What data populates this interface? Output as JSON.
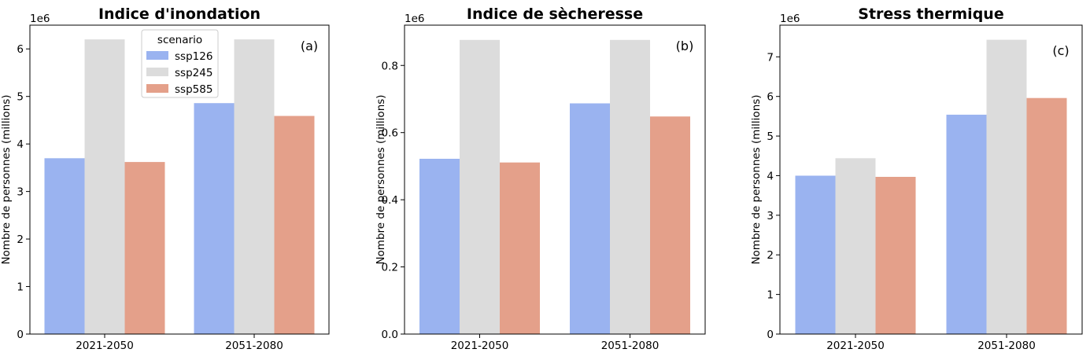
{
  "chart_data": [
    {
      "type": "bar",
      "title": "Indice d'inondation",
      "panel_label": "(a)",
      "ylabel": "Nombre de personnes (millions)",
      "offset_label": "1e6",
      "xlabel": "",
      "categories": [
        "2021-2050",
        "2051-2080"
      ],
      "series": [
        {
          "name": "ssp126",
          "values": [
            3700000,
            4860000
          ],
          "color": "#9ab3f0"
        },
        {
          "name": "ssp245",
          "values": [
            6200000,
            6200000
          ],
          "color": "#dcdcdc"
        },
        {
          "name": "ssp585",
          "values": [
            3620000,
            4590000
          ],
          "color": "#e4a08a"
        }
      ],
      "ylim": [
        0,
        6500000
      ],
      "yticks": [
        0,
        1000000,
        2000000,
        3000000,
        4000000,
        5000000,
        6000000
      ],
      "ytick_labels": [
        "0",
        "1",
        "2",
        "3",
        "4",
        "5",
        "6"
      ],
      "grid": false,
      "legend": {
        "title": "scenario",
        "placement": "upper-center"
      }
    },
    {
      "type": "bar",
      "title": "Indice de sècheresse",
      "panel_label": "(b)",
      "ylabel": "Nombre de personnes (millions)",
      "offset_label": "1e6",
      "xlabel": "",
      "categories": [
        "2021-2050",
        "2051-2080"
      ],
      "series": [
        {
          "name": "ssp126",
          "values": [
            522000,
            687000
          ],
          "color": "#9ab3f0"
        },
        {
          "name": "ssp245",
          "values": [
            876000,
            876000
          ],
          "color": "#dcdcdc"
        },
        {
          "name": "ssp585",
          "values": [
            511000,
            648000
          ],
          "color": "#e4a08a"
        }
      ],
      "ylim": [
        0,
        920000
      ],
      "yticks": [
        0,
        200000,
        400000,
        600000,
        800000
      ],
      "ytick_labels": [
        "0.0",
        "0.2",
        "0.4",
        "0.6",
        "0.8"
      ],
      "grid": false
    },
    {
      "type": "bar",
      "title": "Stress thermique",
      "panel_label": "(c)",
      "ylabel": "Nombre de personnes (millions)",
      "offset_label": "1e6",
      "xlabel": "",
      "categories": [
        "2021-2050",
        "2051-2080"
      ],
      "series": [
        {
          "name": "ssp126",
          "values": [
            4000000,
            5540000
          ],
          "color": "#9ab3f0"
        },
        {
          "name": "ssp245",
          "values": [
            4440000,
            7430000
          ],
          "color": "#dcdcdc"
        },
        {
          "name": "ssp585",
          "values": [
            3970000,
            5960000
          ],
          "color": "#e4a08a"
        }
      ],
      "ylim": [
        0,
        7800000
      ],
      "yticks": [
        0,
        1000000,
        2000000,
        3000000,
        4000000,
        5000000,
        6000000,
        7000000
      ],
      "ytick_labels": [
        "0",
        "1",
        "2",
        "3",
        "4",
        "5",
        "6",
        "7"
      ],
      "grid": false
    }
  ]
}
